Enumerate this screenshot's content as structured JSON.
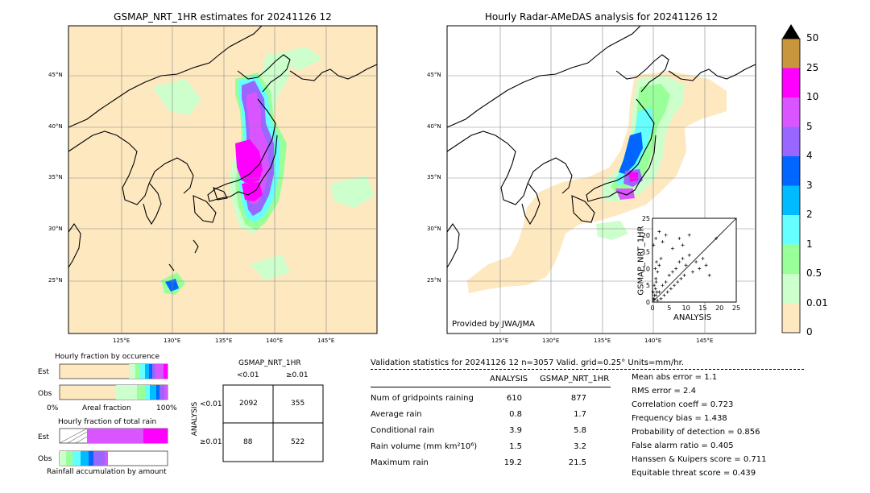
{
  "left_map": {
    "title": "GSMAP_NRT_1HR estimates for 20241126 12",
    "lon_ticks": [
      "125°E",
      "130°E",
      "135°E",
      "140°E",
      "145°E"
    ],
    "lat_ticks": [
      "45°N",
      "40°N",
      "35°N",
      "30°N",
      "25°N"
    ]
  },
  "right_map": {
    "title": "Hourly Radar-AMeDAS analysis for 20241126 12",
    "lon_ticks": [
      "125°E",
      "130°E",
      "135°E",
      "140°E",
      "145°E"
    ],
    "lat_ticks": [
      "45°N",
      "40°N",
      "35°N",
      "30°N",
      "25°N"
    ],
    "credit": "Provided by JWA/JMA"
  },
  "colorbar": {
    "labels": [
      "50",
      "25",
      "10",
      "5",
      "4",
      "3",
      "2",
      "1",
      "0.5",
      "0.01",
      "0"
    ],
    "colors": [
      "#c8963c",
      "#ff00ff",
      "#d955ff",
      "#9966ff",
      "#0066ff",
      "#00bbff",
      "#66ffff",
      "#99ff99",
      "#ccffcc",
      "#fee8c0"
    ]
  },
  "scatter": {
    "xlabel": "ANALYSIS",
    "ylabel": "GSMAP_NRT_1HR",
    "ticks": [
      "0",
      "5",
      "10",
      "15",
      "20",
      "25"
    ]
  },
  "fraction_charts": {
    "occurrence_title": "Hourly fraction by occurence",
    "total_title": "Hourly fraction of total rain",
    "est_label": "Est",
    "obs_label": "Obs",
    "axis_left": "0%",
    "axis_mid": "Areal fraction",
    "axis_right": "100%",
    "bottom_caption": "Rainfall accumulation by amount"
  },
  "contingency": {
    "title": "GSMAP_NRT_1HR",
    "col_lt": "<0.01",
    "col_ge": "≥0.01",
    "row_axis": "ANALYSIS",
    "row_lt": "<0.01",
    "row_ge": "≥0.01",
    "cells": [
      "2092",
      "355",
      "88",
      "522"
    ]
  },
  "validation": {
    "header": "Validation statistics for 20241126 12  n=3057 Valid. grid=0.25° Units=mm/hr.",
    "col_analysis": "ANALYSIS",
    "col_gsmap": "GSMAP_NRT_1HR",
    "rows": [
      {
        "label": "Num of gridpoints raining",
        "analysis": "610",
        "gsmap": "877"
      },
      {
        "label": "Average rain",
        "analysis": "0.8",
        "gsmap": "1.7"
      },
      {
        "label": "Conditional rain",
        "analysis": "3.9",
        "gsmap": "5.8"
      },
      {
        "label": "Rain volume (mm km²10⁶)",
        "analysis": "1.5",
        "gsmap": "3.2"
      },
      {
        "label": "Maximum rain",
        "analysis": "19.2",
        "gsmap": "21.5"
      }
    ],
    "scores": [
      "Mean abs error =    1.1",
      "RMS error =    2.4",
      "Correlation coeff =  0.723",
      "Frequency bias =  1.438",
      "Probability of detection =  0.856",
      "False alarm ratio =  0.405",
      "Hanssen & Kuipers score =  0.711",
      "Equitable threat score =  0.439"
    ]
  },
  "chart_data": [
    {
      "type": "scatter",
      "title": "",
      "xlabel": "ANALYSIS",
      "ylabel": "GSMAP_NRT_1HR",
      "xlim": [
        0,
        25
      ],
      "ylim": [
        0,
        25
      ],
      "points": [
        [
          0.5,
          0.8
        ],
        [
          1,
          2
        ],
        [
          1.5,
          0.5
        ],
        [
          2,
          3
        ],
        [
          2.5,
          1
        ],
        [
          3,
          5
        ],
        [
          3.5,
          2
        ],
        [
          4,
          6
        ],
        [
          4.5,
          3
        ],
        [
          5,
          8
        ],
        [
          5.5,
          4
        ],
        [
          6,
          9
        ],
        [
          6.5,
          5
        ],
        [
          7,
          10
        ],
        [
          7.5,
          6
        ],
        [
          8,
          12
        ],
        [
          8.5,
          7
        ],
        [
          9,
          13
        ],
        [
          9.5,
          8
        ],
        [
          10,
          11
        ],
        [
          11,
          14
        ],
        [
          12,
          9
        ],
        [
          13,
          12
        ],
        [
          14,
          10
        ],
        [
          15,
          13
        ],
        [
          16,
          11
        ],
        [
          17,
          8
        ],
        [
          19,
          19
        ],
        [
          0.3,
          17
        ],
        [
          1,
          19
        ],
        [
          2,
          21
        ],
        [
          3,
          18
        ],
        [
          4,
          20
        ],
        [
          6,
          16
        ],
        [
          8,
          19
        ],
        [
          9,
          17
        ],
        [
          11,
          20
        ],
        [
          0.5,
          5
        ],
        [
          1,
          7
        ],
        [
          0.8,
          10
        ],
        [
          1.2,
          12
        ],
        [
          1.5,
          9
        ],
        [
          2,
          11
        ],
        [
          2.5,
          13
        ],
        [
          0.2,
          3
        ],
        [
          0.4,
          1
        ],
        [
          0.6,
          2
        ],
        [
          0.9,
          4
        ],
        [
          1.1,
          6
        ],
        [
          1.3,
          3
        ]
      ]
    },
    {
      "type": "table",
      "title": "GSMAP_NRT_1HR",
      "columns": [
        "<0.01",
        "≥0.01"
      ],
      "rows": [
        "<0.01",
        "≥0.01"
      ],
      "values": [
        [
          2092,
          355
        ],
        [
          88,
          522
        ]
      ]
    }
  ]
}
